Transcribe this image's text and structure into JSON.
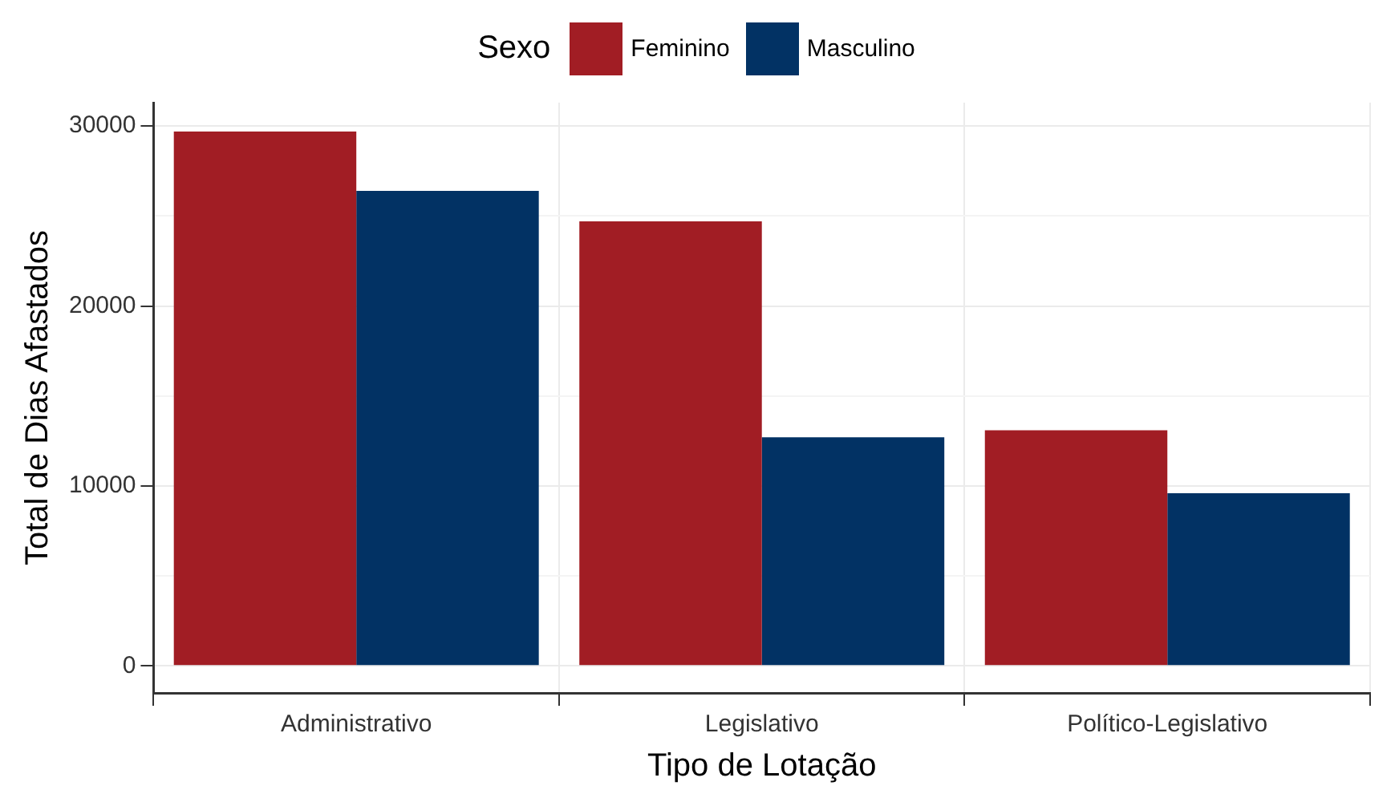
{
  "chart_data": {
    "type": "bar",
    "xlabel": "Tipo de Lotação",
    "ylabel": "Total de Dias Afastados",
    "legend_title": "Sexo",
    "legend": "top",
    "grid": true,
    "categories": [
      "Administrativo",
      "Legislativo",
      "Político-Legislativo"
    ],
    "series": [
      {
        "name": "Feminino",
        "color": "#a11d24",
        "values": [
          29700,
          24700,
          13100
        ]
      },
      {
        "name": "Masculino",
        "color": "#023264",
        "values": [
          26400,
          12700,
          9600
        ]
      }
    ],
    "ylim": [
      -1500,
      31300
    ],
    "yticks": [
      0,
      {
        "value": 5000,
        "label": null
      },
      10000,
      {
        "value": 15000,
        "label": null
      },
      20000,
      {
        "value": 25000,
        "label": null
      },
      30000
    ]
  }
}
